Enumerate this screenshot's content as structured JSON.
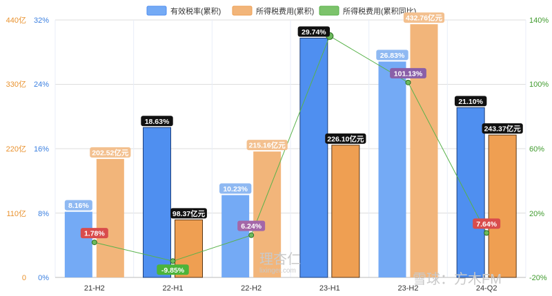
{
  "colors": {
    "rate_fill": "#74aaf5",
    "rate_fill_dark": "#4f8ff0",
    "tax_fill": "#f2b57a",
    "tax_fill_dark": "#ef9f52",
    "growth_line": "#58b24a",
    "axis_money": "#e9912c",
    "axis_pct": "#3a7fe0",
    "axis_right": "#3f9a2d",
    "grid": "#dcdcdc"
  },
  "legend": [
    {
      "key": "rate",
      "label": "有效税率(累积)"
    },
    {
      "key": "tax",
      "label": "所得税费用(累积)"
    },
    {
      "key": "growth",
      "label": "所得税费用(累积同比)"
    }
  ],
  "axes": {
    "left_money_ticks": [
      "0",
      "110亿",
      "220亿",
      "330亿",
      "440亿"
    ],
    "left_pct_ticks": [
      "0%",
      "8%",
      "16%",
      "24%",
      "32%"
    ],
    "right_ticks": [
      "-20%",
      "20%",
      "60%",
      "100%",
      "140%"
    ]
  },
  "watermark": {
    "left_main": "理杏仁",
    "left_sub": "lixinger.com",
    "right": "雪球：方木FM"
  },
  "chart_data": {
    "type": "bar",
    "categories": [
      "21-H2",
      "22-H1",
      "22-H2",
      "23-H1",
      "23-H2",
      "24-Q2"
    ],
    "series": [
      {
        "name": "有效税率(累积)",
        "type": "bar",
        "axis": "left-pct",
        "values": [
          8.16,
          18.63,
          10.23,
          29.74,
          26.83,
          21.1
        ],
        "labels": [
          "8.16%",
          "18.63%",
          "10.23%",
          "29.74%",
          "26.83%",
          "21.10%"
        ]
      },
      {
        "name": "所得税费用(累积)",
        "type": "bar",
        "axis": "left-money",
        "values": [
          202.52,
          98.37,
          215.16,
          226.1,
          432.76,
          243.37
        ],
        "labels": [
          "202.52亿元",
          "98.37亿元",
          "215.16亿元",
          "226.10亿元",
          "432.76亿元",
          "243.37亿元"
        ]
      },
      {
        "name": "所得税费用(累积同比)",
        "type": "line",
        "axis": "right",
        "values": [
          1.78,
          -9.85,
          6.24,
          130.0,
          101.13,
          7.64
        ],
        "labels": [
          "1.78%",
          "-9.85%",
          "6.24%",
          "",
          "101.13%",
          "7.64%"
        ]
      }
    ],
    "highlighted_index": 3,
    "ylim_pct": [
      0,
      32
    ],
    "ylim_money": [
      0,
      440
    ],
    "ylim_right": [
      -20,
      140
    ],
    "grid": true,
    "legend_position": "top-center"
  }
}
